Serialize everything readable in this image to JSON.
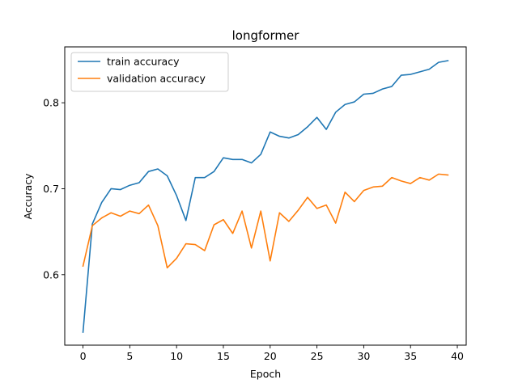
{
  "chart_data": {
    "type": "line",
    "title": "longformer",
    "xlabel": "Epoch",
    "ylabel": "Accuracy",
    "xlim": [
      -1.95,
      40.95
    ],
    "ylim": [
      0.518,
      0.865
    ],
    "xticks": [
      0,
      5,
      10,
      15,
      20,
      25,
      30,
      35,
      40
    ],
    "yticks": [
      0.6,
      0.7,
      0.8
    ],
    "ytick_labels": [
      "0.6",
      "0.7",
      "0.8"
    ],
    "grid": false,
    "legend": "upper-left",
    "x": [
      0,
      1,
      2,
      3,
      4,
      5,
      6,
      7,
      8,
      9,
      10,
      11,
      12,
      13,
      14,
      15,
      16,
      17,
      18,
      19,
      20,
      21,
      22,
      23,
      24,
      25,
      26,
      27,
      28,
      29,
      30,
      31,
      32,
      33,
      34,
      35,
      36,
      37,
      38,
      39
    ],
    "series": [
      {
        "name": "train accuracy",
        "color": "#1f77b4",
        "values": [
          0.533,
          0.659,
          0.684,
          0.7,
          0.699,
          0.704,
          0.707,
          0.72,
          0.723,
          0.715,
          0.692,
          0.663,
          0.713,
          0.713,
          0.72,
          0.736,
          0.734,
          0.734,
          0.73,
          0.74,
          0.766,
          0.761,
          0.759,
          0.763,
          0.772,
          0.783,
          0.769,
          0.789,
          0.798,
          0.801,
          0.81,
          0.811,
          0.816,
          0.819,
          0.832,
          0.833,
          0.836,
          0.839,
          0.847,
          0.849
        ]
      },
      {
        "name": "validation accuracy",
        "color": "#ff7f0e",
        "values": [
          0.61,
          0.657,
          0.666,
          0.672,
          0.668,
          0.674,
          0.671,
          0.681,
          0.657,
          0.608,
          0.619,
          0.636,
          0.635,
          0.628,
          0.658,
          0.664,
          0.648,
          0.674,
          0.631,
          0.674,
          0.616,
          0.672,
          0.662,
          0.675,
          0.69,
          0.677,
          0.681,
          0.66,
          0.696,
          0.685,
          0.698,
          0.702,
          0.703,
          0.713,
          0.709,
          0.706,
          0.713,
          0.71,
          0.717,
          0.716
        ]
      }
    ]
  }
}
